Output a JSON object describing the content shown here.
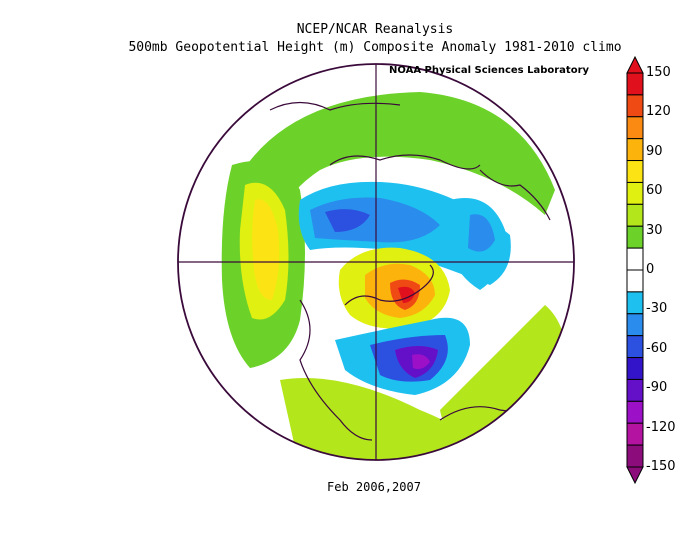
{
  "title_line1": "NCEP/NCAR Reanalysis",
  "title_line2": "500mb Geopotential Height (m) Composite Anomaly 1981-2010 climo",
  "credit": "NOAA Physical Sciences Laboratory",
  "date_label": "Feb 2006,2007",
  "colorbar": {
    "ticks": [
      "150",
      "120",
      "90",
      "60",
      "30",
      "0",
      "-30",
      "-60",
      "-90",
      "-120",
      "-150"
    ],
    "colors": [
      "#e0101c",
      "#f04a14",
      "#fa8a12",
      "#fcb40c",
      "#fce414",
      "#e0f010",
      "#b4e61c",
      "#6cd22a",
      "#ffffff",
      "#ffffff",
      "#1ec0f0",
      "#2a8cec",
      "#2c50e0",
      "#3414c8",
      "#6410c8",
      "#9c10c8",
      "#b412a0",
      "#8c0c7c"
    ]
  },
  "map": {
    "projection": "north-polar-stereographic",
    "features": [
      "positive-anomaly-western-north-america",
      "positive-anomaly-max-arctic",
      "negative-anomaly-eastern-north-america",
      "negative-anomaly-eurasia",
      "negative-anomaly-north-pacific"
    ]
  }
}
